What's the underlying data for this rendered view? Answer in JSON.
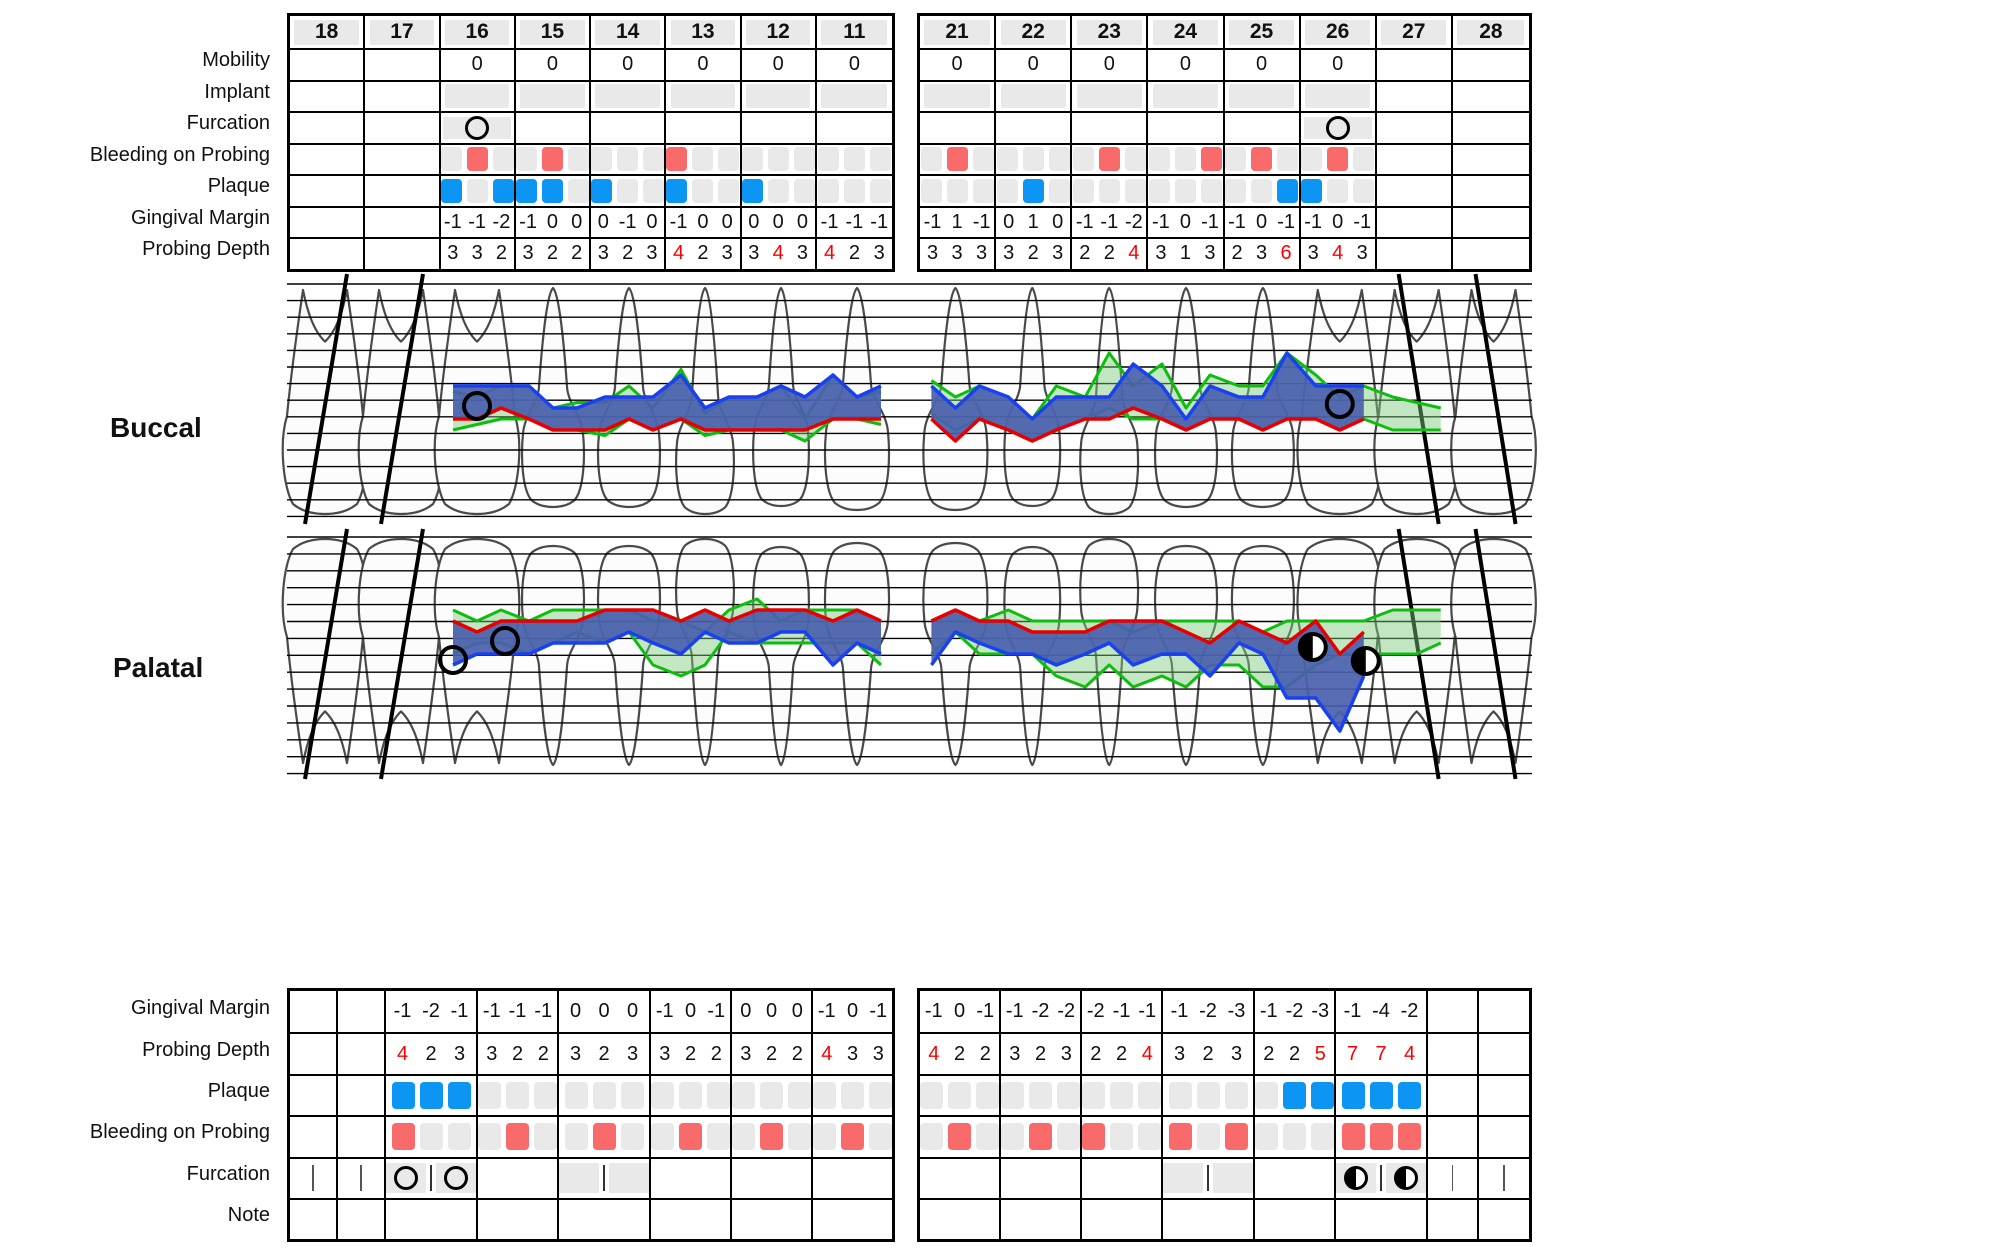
{
  "labels": {
    "buccal": "Buccal",
    "palatal": "Palatal",
    "rows_top": [
      "Mobility",
      "Implant",
      "Furcation",
      "Bleeding on Probing",
      "Plaque",
      "Gingival Margin",
      "Probing Depth"
    ],
    "rows_bottom": [
      "Gingival Margin",
      "Probing Depth",
      "Plaque",
      "Bleeding on Probing",
      "Furcation",
      "Note"
    ]
  },
  "colors": {
    "bleeding": "#F96B6B",
    "plaque": "#0C95F2",
    "segment_gray": "#E9E9E9",
    "alert_red": "#FF0000",
    "margin_line": "#E80000",
    "pocket_line": "#1A41F0",
    "pocket_fill": "#4A5FAE",
    "previous_line": "#0EBD0E",
    "previous_fill": "#7ACC7A"
  },
  "teeth": [
    {
      "id": "18",
      "type": "molar",
      "missing": true,
      "mobility": "",
      "implant": false,
      "buccal": null,
      "palatal": {
        "furcation": "divider"
      }
    },
    {
      "id": "17",
      "type": "molar",
      "missing": true,
      "mobility": "",
      "implant": false,
      "buccal": null,
      "palatal": {
        "furcation": "divider"
      }
    },
    {
      "id": "16",
      "type": "molar",
      "missing": false,
      "mobility": "0",
      "implant": true,
      "buccal": {
        "furcation": "open",
        "bop": [
          0,
          1,
          0
        ],
        "plaque": [
          1,
          0,
          1
        ],
        "gm": [
          -1,
          -1,
          -2
        ],
        "pd": [
          3,
          3,
          2
        ]
      },
      "palatal": {
        "furcation": "open-pair",
        "gm": [
          -1,
          -2,
          -1
        ],
        "pd": [
          4,
          2,
          3
        ],
        "plaque": [
          1,
          1,
          1
        ],
        "bop": [
          1,
          0,
          0
        ]
      }
    },
    {
      "id": "15",
      "type": "premolar",
      "missing": false,
      "mobility": "0",
      "implant": true,
      "buccal": {
        "furcation": null,
        "bop": [
          0,
          1,
          0
        ],
        "plaque": [
          1,
          1,
          0
        ],
        "gm": [
          -1,
          0,
          0
        ],
        "pd": [
          3,
          2,
          2
        ]
      },
      "palatal": {
        "furcation": null,
        "gm": [
          -1,
          -1,
          -1
        ],
        "pd": [
          3,
          2,
          2
        ],
        "plaque": [
          0,
          0,
          0
        ],
        "bop": [
          0,
          1,
          0
        ]
      }
    },
    {
      "id": "14",
      "type": "premolar",
      "missing": false,
      "mobility": "0",
      "implant": true,
      "buccal": {
        "furcation": null,
        "bop": [
          0,
          0,
          0
        ],
        "plaque": [
          1,
          0,
          0
        ],
        "gm": [
          0,
          -1,
          0
        ],
        "pd": [
          3,
          2,
          3
        ]
      },
      "palatal": {
        "furcation": "slots",
        "gm": [
          0,
          0,
          0
        ],
        "pd": [
          3,
          2,
          3
        ],
        "plaque": [
          0,
          0,
          0
        ],
        "bop": [
          0,
          1,
          0
        ]
      }
    },
    {
      "id": "13",
      "type": "canine",
      "missing": false,
      "mobility": "0",
      "implant": true,
      "buccal": {
        "furcation": null,
        "bop": [
          1,
          0,
          0
        ],
        "plaque": [
          1,
          0,
          0
        ],
        "gm": [
          -1,
          0,
          0
        ],
        "pd": [
          4,
          2,
          3
        ]
      },
      "palatal": {
        "furcation": null,
        "gm": [
          -1,
          0,
          -1
        ],
        "pd": [
          3,
          2,
          2
        ],
        "plaque": [
          0,
          0,
          0
        ],
        "bop": [
          0,
          1,
          0
        ]
      }
    },
    {
      "id": "12",
      "type": "lateral",
      "missing": false,
      "mobility": "0",
      "implant": true,
      "buccal": {
        "furcation": null,
        "bop": [
          0,
          0,
          0
        ],
        "plaque": [
          1,
          0,
          0
        ],
        "gm": [
          0,
          0,
          0
        ],
        "pd": [
          3,
          4,
          3
        ]
      },
      "palatal": {
        "furcation": null,
        "gm": [
          0,
          0,
          0
        ],
        "pd": [
          3,
          2,
          2
        ],
        "plaque": [
          0,
          0,
          0
        ],
        "bop": [
          0,
          1,
          0
        ]
      }
    },
    {
      "id": "11",
      "type": "central",
      "missing": false,
      "mobility": "0",
      "implant": true,
      "buccal": {
        "furcation": null,
        "bop": [
          0,
          0,
          0
        ],
        "plaque": [
          0,
          0,
          0
        ],
        "gm": [
          -1,
          -1,
          -1
        ],
        "pd": [
          4,
          2,
          3
        ]
      },
      "palatal": {
        "furcation": null,
        "gm": [
          -1,
          0,
          -1
        ],
        "pd": [
          4,
          3,
          3
        ],
        "plaque": [
          0,
          0,
          0
        ],
        "bop": [
          0,
          1,
          0
        ]
      }
    },
    {
      "id": "21",
      "type": "central",
      "missing": false,
      "mobility": "0",
      "implant": true,
      "buccal": {
        "furcation": null,
        "bop": [
          0,
          1,
          0
        ],
        "plaque": [
          0,
          0,
          0
        ],
        "gm": [
          -1,
          1,
          -1
        ],
        "pd": [
          3,
          3,
          3
        ]
      },
      "palatal": {
        "furcation": null,
        "gm": [
          -1,
          0,
          -1
        ],
        "pd": [
          4,
          2,
          2
        ],
        "plaque": [
          0,
          0,
          0
        ],
        "bop": [
          0,
          1,
          0
        ]
      }
    },
    {
      "id": "22",
      "type": "lateral",
      "missing": false,
      "mobility": "0",
      "implant": true,
      "buccal": {
        "furcation": null,
        "bop": [
          0,
          0,
          0
        ],
        "plaque": [
          0,
          1,
          0
        ],
        "gm": [
          0,
          1,
          0
        ],
        "pd": [
          3,
          2,
          3
        ]
      },
      "palatal": {
        "furcation": null,
        "gm": [
          -1,
          -2,
          -2
        ],
        "pd": [
          3,
          2,
          3
        ],
        "plaque": [
          0,
          0,
          0
        ],
        "bop": [
          0,
          1,
          0
        ]
      }
    },
    {
      "id": "23",
      "type": "canine",
      "missing": false,
      "mobility": "0",
      "implant": true,
      "buccal": {
        "furcation": null,
        "bop": [
          0,
          1,
          0
        ],
        "plaque": [
          0,
          0,
          0
        ],
        "gm": [
          -1,
          -1,
          -2
        ],
        "pd": [
          2,
          2,
          4
        ]
      },
      "palatal": {
        "furcation": null,
        "gm": [
          -2,
          -1,
          -1
        ],
        "pd": [
          2,
          2,
          4
        ],
        "plaque": [
          0,
          0,
          0
        ],
        "bop": [
          1,
          0,
          0
        ]
      }
    },
    {
      "id": "24",
      "type": "premolar",
      "missing": false,
      "mobility": "0",
      "implant": true,
      "buccal": {
        "furcation": null,
        "bop": [
          0,
          0,
          1
        ],
        "plaque": [
          0,
          0,
          0
        ],
        "gm": [
          -1,
          0,
          -1
        ],
        "pd": [
          3,
          1,
          3
        ]
      },
      "palatal": {
        "furcation": "slots",
        "gm": [
          -1,
          -2,
          -3
        ],
        "pd": [
          3,
          2,
          3
        ],
        "plaque": [
          0,
          0,
          0
        ],
        "bop": [
          1,
          0,
          1
        ]
      }
    },
    {
      "id": "25",
      "type": "premolar",
      "missing": false,
      "mobility": "0",
      "implant": true,
      "buccal": {
        "furcation": null,
        "bop": [
          0,
          1,
          0
        ],
        "plaque": [
          0,
          0,
          1
        ],
        "gm": [
          -1,
          0,
          -1
        ],
        "pd": [
          2,
          3,
          6
        ]
      },
      "palatal": {
        "furcation": null,
        "gm": [
          -1,
          -2,
          -3
        ],
        "pd": [
          2,
          2,
          5
        ],
        "plaque": [
          0,
          1,
          1
        ],
        "bop": [
          0,
          0,
          0
        ]
      }
    },
    {
      "id": "26",
      "type": "molar",
      "missing": false,
      "mobility": "0",
      "implant": true,
      "buccal": {
        "furcation": "open",
        "bop": [
          0,
          1,
          0
        ],
        "plaque": [
          1,
          0,
          0
        ],
        "gm": [
          -1,
          0,
          -1
        ],
        "pd": [
          3,
          4,
          3
        ]
      },
      "palatal": {
        "furcation": "half-pair",
        "gm": [
          -1,
          -4,
          -2
        ],
        "pd": [
          7,
          7,
          4
        ],
        "plaque": [
          1,
          1,
          1
        ],
        "bop": [
          1,
          1,
          1
        ]
      }
    },
    {
      "id": "27",
      "type": "molar",
      "missing": true,
      "mobility": "",
      "implant": false,
      "buccal": null,
      "palatal": {
        "furcation": "divider"
      }
    },
    {
      "id": "28",
      "type": "molar",
      "missing": true,
      "mobility": "",
      "implant": false,
      "buccal": null,
      "palatal": {
        "furcation": "divider"
      }
    }
  ],
  "chart_traces": {
    "note": "green = previous exam traces (values estimated from drawing, in mm)",
    "previous_buccal": {
      "16": {
        "gm": [
          0,
          -0.5,
          -1
        ],
        "pd": [
          3.5,
          2.5,
          3
        ]
      },
      "15": {
        "gm": [
          -1,
          0,
          0
        ],
        "pd": [
          3,
          2,
          2.5
        ]
      },
      "14": {
        "gm": [
          0.5,
          -1,
          0
        ],
        "pd": [
          3,
          3,
          2
        ]
      },
      "13": {
        "gm": [
          -1,
          0.5,
          0
        ],
        "pd": [
          4.5,
          2,
          3
        ]
      },
      "12": {
        "gm": [
          0,
          0,
          1
        ],
        "pd": [
          3,
          4,
          2
        ]
      },
      "11": {
        "gm": [
          -1,
          -1,
          -0.5
        ],
        "pd": [
          4,
          2,
          3
        ]
      },
      "21": {
        "gm": [
          -1.5,
          0,
          -1
        ],
        "pd": [
          3,
          3,
          3
        ]
      },
      "22": {
        "gm": [
          0,
          1,
          0
        ],
        "pd": [
          3,
          2,
          4
        ]
      },
      "23": {
        "gm": [
          -1,
          -2,
          -1
        ],
        "pd": [
          2,
          5,
          3
        ]
      },
      "24": {
        "gm": [
          -1,
          0,
          -1
        ],
        "pd": [
          5,
          2,
          4
        ]
      },
      "25": {
        "gm": [
          -1,
          0,
          -1
        ],
        "pd": [
          3,
          4,
          6
        ]
      },
      "26": {
        "gm": [
          -1,
          0,
          -1
        ],
        "pd": [
          4,
          3,
          3
        ]
      },
      "27": {
        "gm": [
          0,
          0,
          0
        ],
        "pd": [
          3,
          2.5,
          2
        ]
      }
    },
    "previous_palatal": {
      "16": {
        "gm": [
          0,
          -1,
          0
        ],
        "pd": [
          4,
          2,
          3
        ]
      },
      "15": {
        "gm": [
          -1,
          0,
          0
        ],
        "pd": [
          3,
          3,
          2
        ]
      },
      "14": {
        "gm": [
          0,
          0,
          -1
        ],
        "pd": [
          3,
          2,
          4
        ]
      },
      "13": {
        "gm": [
          -1,
          -2,
          0
        ],
        "pd": [
          5,
          3,
          2
        ]
      },
      "12": {
        "gm": [
          1,
          -1,
          0
        ],
        "pd": [
          4,
          2,
          3
        ]
      },
      "11": {
        "gm": [
          0,
          0,
          -1
        ],
        "pd": [
          3,
          3,
          4
        ]
      },
      "21": {
        "gm": [
          -1,
          0,
          -1
        ],
        "pd": [
          3,
          2,
          3
        ]
      },
      "22": {
        "gm": [
          0,
          -1,
          -1
        ],
        "pd": [
          4,
          3,
          5
        ]
      },
      "23": {
        "gm": [
          -1,
          -1,
          -2
        ],
        "pd": [
          6,
          4,
          5
        ]
      },
      "24": {
        "gm": [
          -1,
          -1,
          -1
        ],
        "pd": [
          5,
          6,
          4
        ]
      },
      "25": {
        "gm": [
          -1,
          -2,
          -1
        ],
        "pd": [
          4,
          5,
          6
        ]
      },
      "26": {
        "gm": [
          -1,
          -1,
          -1
        ],
        "pd": [
          4,
          3,
          3
        ]
      },
      "27": {
        "gm": [
          0,
          0,
          0
        ],
        "pd": [
          4,
          4,
          3
        ]
      }
    }
  }
}
